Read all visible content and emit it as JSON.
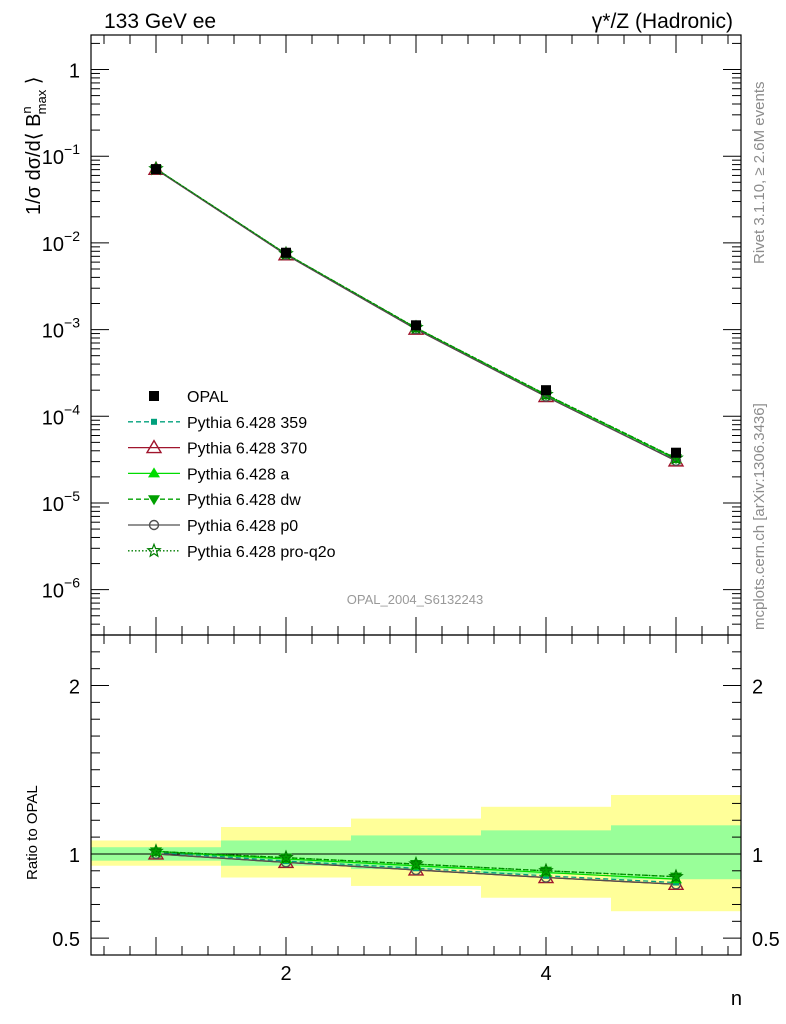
{
  "header": {
    "left_title": "133 GeV ee",
    "right_title": "γ*/Z (Hadronic)"
  },
  "side_labels": {
    "rivet": "Rivet 3.1.10, ≥ 2.6M events",
    "mcplots": "mcplots.cern.ch [arXiv:1306.3436]"
  },
  "watermark": "OPAL_2004_S6132243",
  "colors": {
    "opal": "#000000",
    "p359": "#00a07c",
    "p370": "#a0152d",
    "pa": "#00dc00",
    "pdw": "#00a000",
    "pp0": "#505050",
    "pq2o": "#007d00",
    "band_inner": "#99ff99",
    "band_outer": "#ffff99"
  },
  "chart_data": [
    {
      "type": "line",
      "panel": "main",
      "ylabel": "1/σ dσ/d⟨ B^n_max ⟩",
      "yscale": "log",
      "ylim": [
        3e-07,
        2.5
      ],
      "xlim": [
        0.5,
        5.5
      ],
      "x": [
        1,
        2,
        3,
        4,
        5
      ],
      "y_ticks": [
        {
          "value": 1,
          "label": "1"
        },
        {
          "value": 0.1,
          "label": "10",
          "exp": "−1"
        },
        {
          "value": 0.01,
          "label": "10",
          "exp": "−2"
        },
        {
          "value": 0.001,
          "label": "10",
          "exp": "−3"
        },
        {
          "value": 0.0001,
          "label": "10",
          "exp": "−4"
        },
        {
          "value": 1e-05,
          "label": "10",
          "exp": "−5"
        },
        {
          "value": 1e-06,
          "label": "10",
          "exp": "−6"
        }
      ],
      "legend_position": "lower-left",
      "series": [
        {
          "name": "OPAL",
          "values": [
            0.071,
            0.0077,
            0.00112,
            0.0002,
            3.8e-05
          ]
        },
        {
          "name": "Pythia 6.428 359",
          "values": [
            0.0715,
            0.00735,
            0.00102,
            0.000171,
            3.12e-05
          ]
        },
        {
          "name": "Pythia 6.428 370",
          "values": [
            0.0705,
            0.0073,
            0.00101,
            0.000169,
            3.06e-05
          ]
        },
        {
          "name": "Pythia 6.428 a",
          "values": [
            0.0715,
            0.00745,
            0.00104,
            0.000175,
            3.22e-05
          ]
        },
        {
          "name": "Pythia 6.428 dw",
          "values": [
            0.0715,
            0.00748,
            0.00105,
            0.000178,
            3.28e-05
          ]
        },
        {
          "name": "Pythia 6.428 p0",
          "values": [
            0.0705,
            0.0073,
            0.00101,
            0.000169,
            3.06e-05
          ]
        },
        {
          "name": "Pythia 6.428 pro-q2o",
          "values": [
            0.0715,
            0.00748,
            0.00105,
            0.000178,
            3.28e-05
          ]
        }
      ]
    },
    {
      "type": "line",
      "panel": "ratio",
      "ylabel": "Ratio to OPAL",
      "xlabel": "n",
      "ylim": [
        0.4,
        2.3
      ],
      "xlim": [
        0.5,
        5.5
      ],
      "x_ticks": [
        {
          "value": 2,
          "label": "2"
        },
        {
          "value": 4,
          "label": "4"
        }
      ],
      "y_ticks": [
        {
          "value": 0.5,
          "label": "0.5"
        },
        {
          "value": 1,
          "label": "1"
        },
        {
          "value": 2,
          "label": "2"
        }
      ],
      "bands": [
        {
          "x0": 0.5,
          "x1": 1.5,
          "inner": [
            0.96,
            1.04
          ],
          "outer": [
            0.93,
            1.08
          ]
        },
        {
          "x0": 1.5,
          "x1": 2.5,
          "inner": [
            0.93,
            1.08
          ],
          "outer": [
            0.86,
            1.16
          ]
        },
        {
          "x0": 2.5,
          "x1": 3.5,
          "inner": [
            0.91,
            1.11
          ],
          "outer": [
            0.81,
            1.21
          ]
        },
        {
          "x0": 3.5,
          "x1": 4.5,
          "inner": [
            0.88,
            1.14
          ],
          "outer": [
            0.74,
            1.28
          ]
        },
        {
          "x0": 4.5,
          "x1": 5.5,
          "inner": [
            0.85,
            1.17
          ],
          "outer": [
            0.66,
            1.35
          ]
        }
      ],
      "x": [
        1,
        2,
        3,
        4,
        5
      ],
      "series": [
        {
          "name": "Pythia 6.428 370",
          "values": [
            1.0,
            0.95,
            0.905,
            0.86,
            0.82
          ]
        },
        {
          "name": "Pythia 6.428 p0",
          "values": [
            1.0,
            0.95,
            0.905,
            0.86,
            0.82
          ]
        },
        {
          "name": "Pythia 6.428 359",
          "values": [
            1.01,
            0.958,
            0.915,
            0.87,
            0.83
          ]
        },
        {
          "name": "Pythia 6.428 a",
          "values": [
            1.015,
            0.97,
            0.93,
            0.89,
            0.85
          ]
        },
        {
          "name": "Pythia 6.428 dw",
          "values": [
            1.015,
            0.978,
            0.94,
            0.9,
            0.865
          ]
        },
        {
          "name": "Pythia 6.428 pro-q2o",
          "values": [
            1.015,
            0.978,
            0.94,
            0.9,
            0.865
          ]
        }
      ]
    }
  ]
}
